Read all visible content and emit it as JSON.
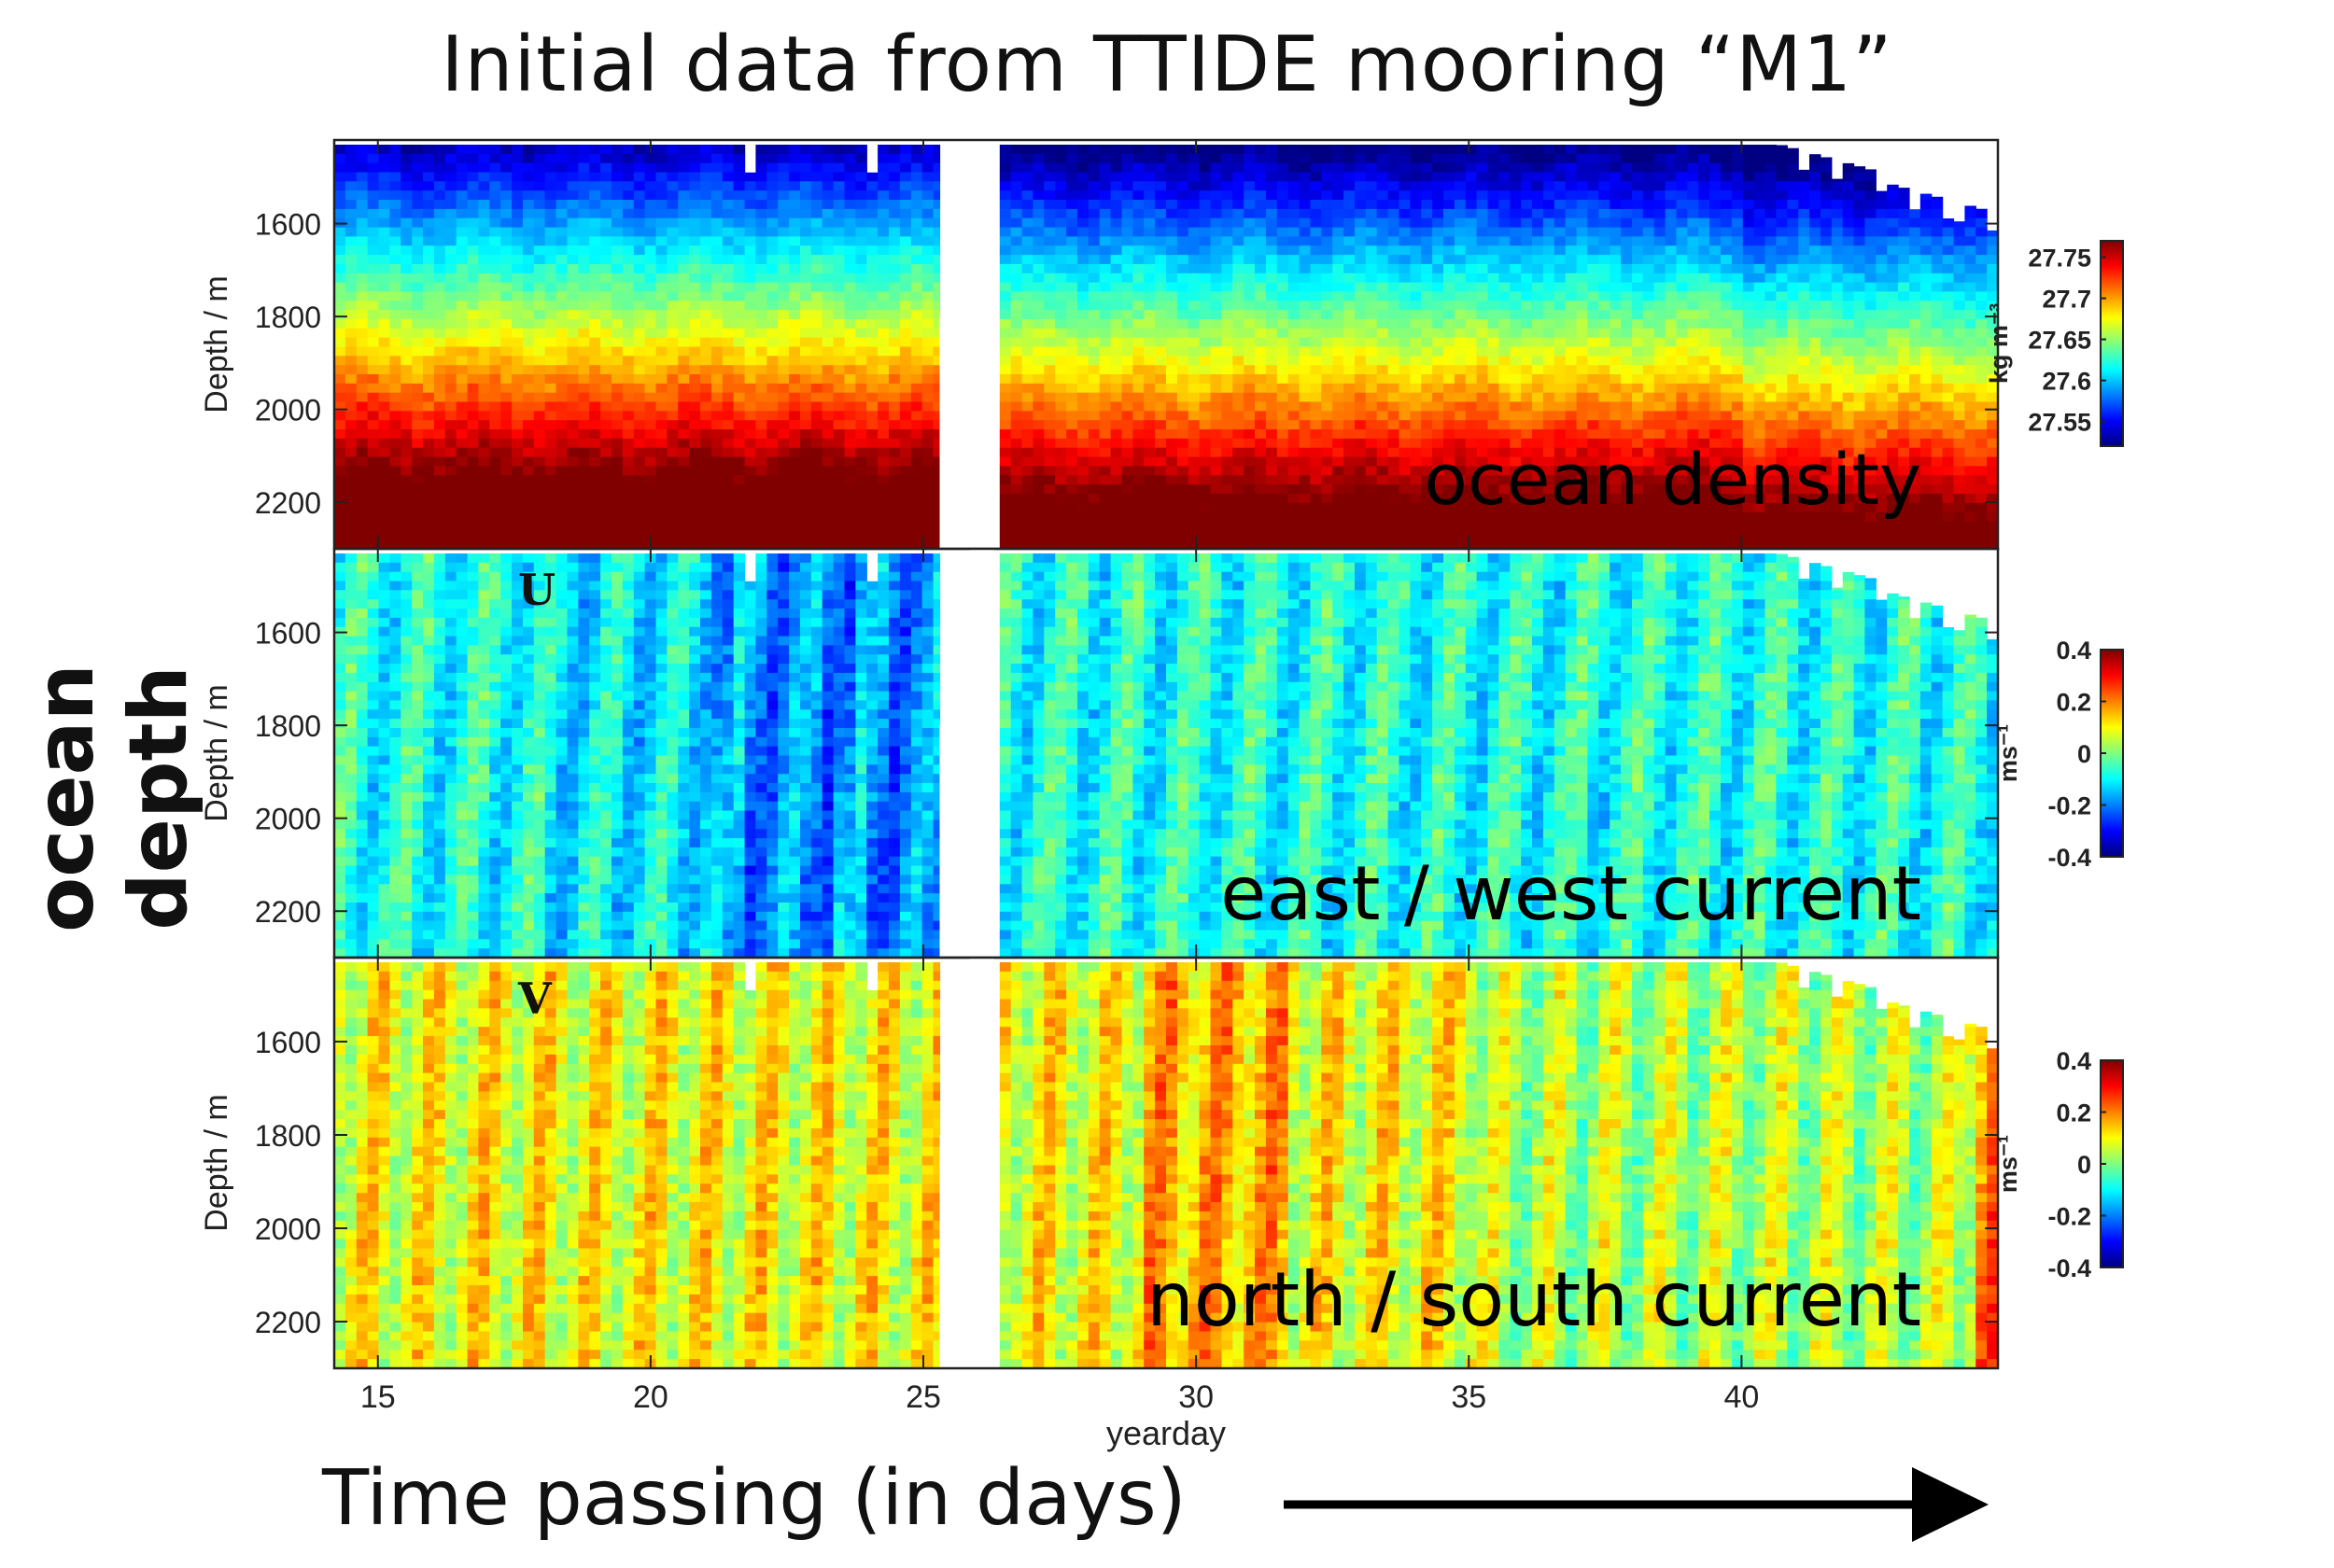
{
  "figure": {
    "title": "Initial data from TTIDE mooring “M1”",
    "side_label": "ocean depth",
    "bottom_label": "Time passing (in days)"
  },
  "chart_data": [
    {
      "type": "heatmap",
      "quantity": "ocean density",
      "overlay_label": "ocean density",
      "panel_letter": "",
      "ylabel": "Depth / m",
      "xlabel": "",
      "x_range": [
        14.2,
        44.7
      ],
      "y_range": [
        1420,
        2300
      ],
      "y_reversed": true,
      "x_ticks": [
        15,
        20,
        25,
        30,
        35,
        40
      ],
      "x_tick_labels_shown": false,
      "y_ticks": [
        1600,
        1800,
        2000,
        2200
      ],
      "data_gap_yeardays": [
        25.3,
        26.3
      ],
      "colorbar": {
        "label": "kg m⁻³",
        "range": [
          27.52,
          27.77
        ],
        "ticks": [
          "27.75",
          "27.7",
          "27.65",
          "27.6",
          "27.55"
        ],
        "colormap": "jet"
      }
    },
    {
      "type": "heatmap",
      "quantity": "east / west current",
      "overlay_label": "east / west current",
      "panel_letter": "U",
      "ylabel": "Depth / m",
      "xlabel": "",
      "x_range": [
        14.2,
        44.7
      ],
      "y_range": [
        1420,
        2300
      ],
      "y_reversed": true,
      "x_ticks": [
        15,
        20,
        25,
        30,
        35,
        40
      ],
      "x_tick_labels_shown": false,
      "y_ticks": [
        1600,
        1800,
        2000,
        2200
      ],
      "data_gap_yeardays": [
        25.3,
        26.3
      ],
      "colorbar": {
        "label": "ms⁻¹",
        "range": [
          -0.4,
          0.4
        ],
        "ticks": [
          "0.4",
          "0.2",
          "0",
          "-0.2",
          "-0.4"
        ],
        "colormap": "jet"
      }
    },
    {
      "type": "heatmap",
      "quantity": "north / south current",
      "overlay_label": "north / south current",
      "panel_letter": "V",
      "ylabel": "Depth / m",
      "xlabel": "yearday",
      "x_range": [
        14.2,
        44.7
      ],
      "y_range": [
        1420,
        2300
      ],
      "y_reversed": true,
      "x_ticks": [
        15,
        20,
        25,
        30,
        35,
        40
      ],
      "x_tick_labels_shown": true,
      "y_ticks": [
        1600,
        1800,
        2000,
        2200
      ],
      "data_gap_yeardays": [
        25.3,
        26.3
      ],
      "colorbar": {
        "label": "ms⁻¹",
        "range": [
          -0.4,
          0.4
        ],
        "ticks": [
          "0.4",
          "0.2",
          "0",
          "-0.2",
          "-0.4"
        ],
        "colormap": "jet"
      }
    }
  ]
}
